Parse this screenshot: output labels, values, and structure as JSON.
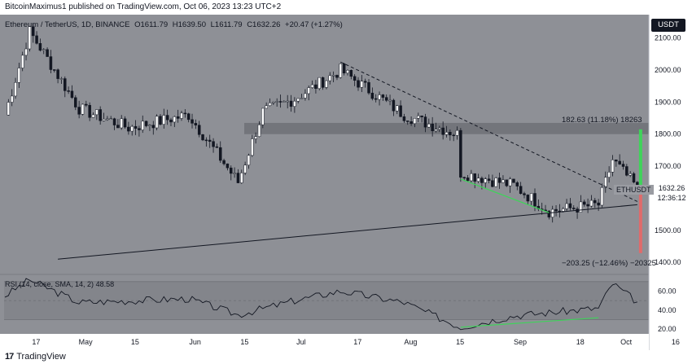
{
  "header": {
    "attribution": "BitcoinMaximus1 published on TradingView.com, Oct 06, 2023 13:23 UTC+2"
  },
  "legend": {
    "symbol": "Ethereum / TetherUS, 1D, BINANCE",
    "open": "O1611.79",
    "high": "H1639.50",
    "low": "L1611.79",
    "close": "C1632.26",
    "change": "+20.47 (+1.27%)"
  },
  "currency": "USDT",
  "price_label": "ETHUSDT",
  "price_tag": {
    "price": "1632.26",
    "countdown": "12:36:12"
  },
  "annotations": {
    "up_target": "182.63 (11.18%) 18263",
    "down_target": "−203.25 (−12.46%) −20325"
  },
  "rsi_legend": {
    "label": "RSI (14, close, SMA, 14, 2)",
    "value": "48.58"
  },
  "footer": {
    "logo_mark": "17",
    "logo_text": "TradingView"
  },
  "colors": {
    "background": "#8e9096",
    "candle_up": "#ffffff",
    "candle_down": "#131722",
    "resistance_zone": "#6f7177",
    "support_line": "#131722",
    "divergence": "#3fd35a",
    "up_arrow": "#3fd35a",
    "down_arrow": "#e06b6b"
  },
  "chart_data": [
    {
      "type": "candlestick",
      "title": "",
      "x_tick_labels": [
        "17",
        "May",
        "15",
        "Jun",
        "15",
        "Jul",
        "17",
        "Aug",
        "15",
        "Sep",
        "18",
        "Oct",
        "16"
      ],
      "y_tick_labels": [
        "2100.00",
        "2000.00",
        "1900.00",
        "1800.00",
        "1700.00",
        "1600.00",
        "1500.00",
        "1400.00"
      ],
      "ylim": [
        1365,
        2160
      ],
      "series_anchors": {
        "dates": [
          "Apr 10",
          "Apr 17",
          "Apr 20",
          "May 1",
          "May 15",
          "Jun 1",
          "Jun 15",
          "Jun 22",
          "Jul 1",
          "Jul 14",
          "Aug 1",
          "Aug 16",
          "Aug 17",
          "Sep 1",
          "Sep 11",
          "Sep 25",
          "Sep 29",
          "Oct 6"
        ],
        "close": [
          1860,
          2120,
          2070,
          1880,
          1820,
          1860,
          1650,
          1870,
          1910,
          2000,
          1860,
          1800,
          1680,
          1640,
          1560,
          1580,
          1720,
          1632.26
        ]
      },
      "zones": [
        {
          "name": "",
          "from": 1800,
          "to": 1835
        }
      ],
      "lines": [
        {
          "style": "dashed",
          "from": [
            "Jul 14",
            2025
          ],
          "to": [
            "Oct 6",
            1590
          ]
        },
        {
          "style": "solid",
          "from": [
            "Apr 25",
            1410
          ],
          "to": [
            "Oct 6",
            1580
          ]
        }
      ],
      "projection": {
        "up": {
          "change": 182.63,
          "percent": 11.18
        },
        "down": {
          "change": -203.25,
          "percent": -12.46
        }
      }
    },
    {
      "type": "line",
      "title": "RSI (14, close, SMA, 14, 2)",
      "y_tick_labels": [
        "60.00",
        "40.00",
        "20.00"
      ],
      "ylim": [
        15,
        75
      ],
      "levels": [
        70,
        50,
        30
      ],
      "last_value": 48.58,
      "series_anchors": {
        "dates": [
          "Apr 10",
          "Apr 17",
          "May 1",
          "Jun 1",
          "Jun 15",
          "Jul 1",
          "Jul 14",
          "Aug 1",
          "Aug 17",
          "Sep 1",
          "Sep 25",
          "Sep 29",
          "Oct 6"
        ],
        "values": [
          55,
          72,
          48,
          52,
          35,
          50,
          60,
          48,
          22,
          34,
          42,
          68,
          48.58
        ]
      }
    }
  ]
}
